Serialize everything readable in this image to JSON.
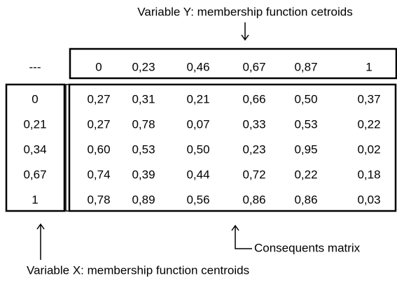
{
  "top_label": "Variable Y: membership function cetroids",
  "corner": "---",
  "column_headers": [
    "0",
    "0,23",
    "0,46",
    "0,67",
    "0,87",
    "1"
  ],
  "row_headers": [
    "0",
    "0,21",
    "0,34",
    "0,67",
    "1"
  ],
  "matrix": {
    "rows": [
      [
        "0,27",
        "0,31",
        "0,21",
        "0,66",
        "0,50",
        "0,37"
      ],
      [
        "0,27",
        "0,78",
        "0,07",
        "0,33",
        "0,53",
        "0,22"
      ],
      [
        "0,60",
        "0,53",
        "0,50",
        "0,23",
        "0,95",
        "0,02"
      ],
      [
        "0,74",
        "0,39",
        "0,44",
        "0,72",
        "0,22",
        "0,18"
      ],
      [
        "0,78",
        "0,89",
        "0,56",
        "0,86",
        "0,86",
        "0,03"
      ]
    ]
  },
  "matrix_label": "Consequents matrix",
  "bottom_label": "Variable X: membership function centroids"
}
